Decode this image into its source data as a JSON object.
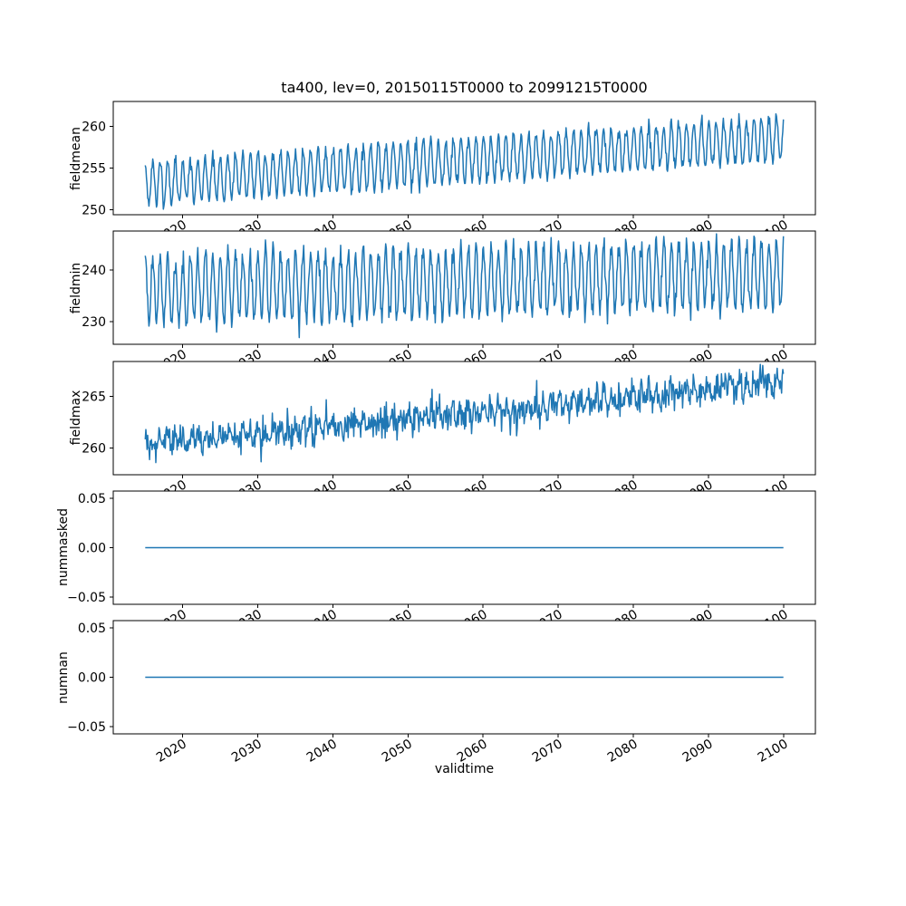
{
  "figure": {
    "title": "ta400, lev=0, 20150115T0000 to 20991215T0000",
    "xlabel": "validtime",
    "background_color": "#ffffff",
    "line_color": "#1f77b4",
    "axis_color": "#000000",
    "xlim": [
      2010.79,
      2104.21
    ],
    "x_tick_values": [
      2020,
      2030,
      2040,
      2050,
      2060,
      2070,
      2080,
      2090,
      2100
    ],
    "x_tick_labels": [
      "2020",
      "2030",
      "2040",
      "2050",
      "2060",
      "2070",
      "2080",
      "2090",
      "2100"
    ],
    "x_tick_rotation_deg": 30
  },
  "chart_data": [
    {
      "type": "line",
      "name": "fieldmean",
      "ylabel": "fieldmean",
      "x_start": 2015.042,
      "x_end": 2099.958,
      "points_per_year": 12,
      "ylim": [
        249.4,
        263.0
      ],
      "ytick_values": [
        250,
        255,
        260
      ],
      "ytick_labels": [
        "250",
        "255",
        "260"
      ],
      "series": {
        "pattern": "annual-cycle-with-linear-trend",
        "trend_start": 253.2,
        "trend_end": 258.6,
        "seasonal_amplitude": 2.6,
        "noise_sd": 0.4,
        "seed": 11,
        "envelope_at_2015": [
          250.2,
          256.2
        ],
        "envelope_at_2099": [
          255.6,
          262.0
        ]
      }
    },
    {
      "type": "line",
      "name": "fieldmin",
      "ylabel": "fieldmin",
      "x_start": 2015.042,
      "x_end": 2099.958,
      "points_per_year": 12,
      "ylim": [
        225.6,
        247.5
      ],
      "ytick_values": [
        230,
        240
      ],
      "ytick_labels": [
        "230",
        "240"
      ],
      "series": {
        "pattern": "annual-cycle-with-linear-trend",
        "trend_start": 236.2,
        "trend_end": 239.2,
        "seasonal_amplitude": 6.4,
        "noise_sd": 1.1,
        "seed": 22,
        "envelope_at_2015": [
          228.5,
          244.0
        ],
        "envelope_at_2099": [
          231.5,
          247.0
        ]
      }
    },
    {
      "type": "line",
      "name": "fieldmax",
      "ylabel": "fieldmax",
      "x_start": 2015.042,
      "x_end": 2099.958,
      "points_per_year": 12,
      "ylim": [
        257.4,
        268.4
      ],
      "ytick_values": [
        260,
        265
      ],
      "ytick_labels": [
        "260",
        "265"
      ],
      "series": {
        "pattern": "noisy-linear-trend-weak-annual-cycle",
        "trend_start": 260.3,
        "trend_end": 266.3,
        "seasonal_amplitude": 0.6,
        "noise_sd": 0.7,
        "seed": 33,
        "envelope_at_2015": [
          259.0,
          262.0
        ],
        "envelope_at_2099": [
          264.5,
          268.4
        ]
      }
    },
    {
      "type": "line",
      "name": "nummasked",
      "ylabel": "nummasked",
      "x_start": 2015.042,
      "x_end": 2099.958,
      "points_per_year": 12,
      "ylim": [
        -0.0575,
        0.0575
      ],
      "ytick_values": [
        0.05,
        0.0,
        -0.05
      ],
      "ytick_labels": [
        "0.05",
        "0.00",
        "−0.05"
      ],
      "series": {
        "pattern": "constant",
        "value": 0,
        "trend_start": 0,
        "trend_end": 0,
        "seasonal_amplitude": 0,
        "noise_sd": 0,
        "seed": 44
      }
    },
    {
      "type": "line",
      "name": "numnan",
      "ylabel": "numnan",
      "x_start": 2015.042,
      "x_end": 2099.958,
      "points_per_year": 12,
      "ylim": [
        -0.0575,
        0.0575
      ],
      "ytick_values": [
        0.05,
        0.0,
        -0.05
      ],
      "ytick_labels": [
        "0.05",
        "0.00",
        "−0.05"
      ],
      "series": {
        "pattern": "constant",
        "value": 0,
        "trend_start": 0,
        "trend_end": 0,
        "seasonal_amplitude": 0,
        "noise_sd": 0,
        "seed": 55
      }
    }
  ]
}
